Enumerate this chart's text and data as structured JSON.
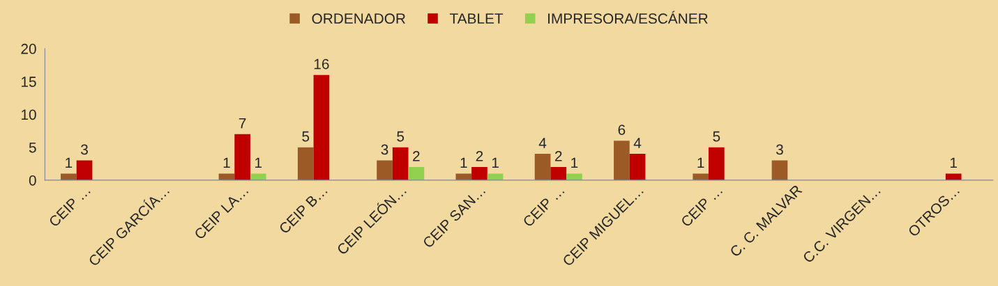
{
  "chart_data": {
    "type": "bar",
    "categories": [
      "CEIP …",
      "CEIP GARCÍA…",
      "CEIP LA…",
      "CEIP B…",
      "CEIP LEÓN…",
      "CEIP SAN…",
      "CEIP …",
      "CEIP MIGUEL…",
      "CEIP …",
      "C. C. MALVAR",
      "C.C. VIRGEN…",
      "OTROS…"
    ],
    "series": [
      {
        "name": "ORDENADOR",
        "color": "#9c5b26",
        "values": [
          1,
          0,
          1,
          5,
          3,
          1,
          4,
          6,
          1,
          3,
          0,
          0
        ],
        "value_labels": [
          "1",
          null,
          "1",
          "5",
          "3",
          "1",
          "4",
          "6",
          "1",
          "3",
          null,
          null
        ]
      },
      {
        "name": "TABLET",
        "color": "#c00000",
        "values": [
          3,
          0,
          7,
          16,
          5,
          2,
          2,
          4,
          5,
          0,
          0,
          1
        ],
        "value_labels": [
          "3",
          null,
          "7",
          "16",
          "5",
          "2",
          "2",
          "4",
          "5",
          null,
          null,
          "1"
        ]
      },
      {
        "name": "IMPRESORA/ESCÁNER",
        "color": "#92d050",
        "values": [
          0,
          0,
          1,
          0,
          2,
          1,
          1,
          0,
          0,
          0,
          0,
          0
        ],
        "value_labels": [
          null,
          null,
          "1",
          null,
          "2",
          "1",
          "1",
          null,
          null,
          null,
          null,
          null
        ]
      }
    ],
    "ylim": [
      0,
      20
    ],
    "yticks": [
      0,
      5,
      10,
      15,
      20
    ],
    "grid": false,
    "legend": "top"
  }
}
